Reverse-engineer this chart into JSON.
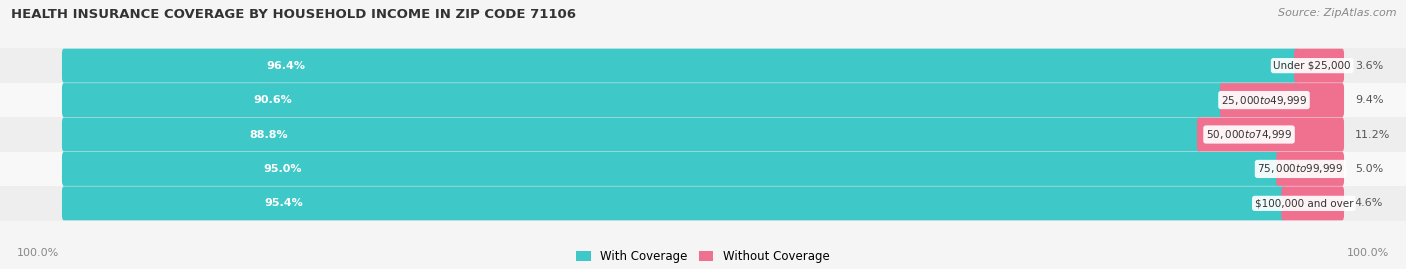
{
  "title": "HEALTH INSURANCE COVERAGE BY HOUSEHOLD INCOME IN ZIP CODE 71106",
  "source": "Source: ZipAtlas.com",
  "categories": [
    "Under $25,000",
    "$25,000 to $49,999",
    "$50,000 to $74,999",
    "$75,000 to $99,999",
    "$100,000 and over"
  ],
  "with_coverage": [
    96.4,
    90.6,
    88.8,
    95.0,
    95.4
  ],
  "without_coverage": [
    3.6,
    9.4,
    11.2,
    5.0,
    4.6
  ],
  "color_with": "#3ec8c8",
  "color_without": "#f07090",
  "color_row_bg_even": "#eeeeee",
  "color_row_bg_odd": "#f8f8f8",
  "color_bg": "#f5f5f5",
  "label_color_with": "#ffffff",
  "label_color_without": "#555555",
  "title_color": "#333333",
  "source_color": "#888888",
  "footer_color": "#888888",
  "figsize": [
    14.06,
    2.69
  ],
  "dpi": 100,
  "bar_total_pct": 100,
  "legend_with": "With Coverage",
  "legend_without": "Without Coverage"
}
